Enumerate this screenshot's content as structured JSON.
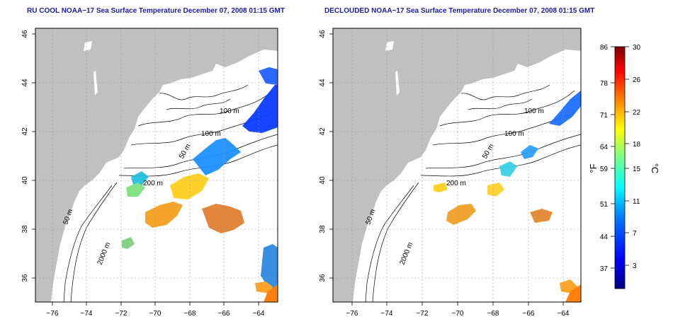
{
  "panels": [
    {
      "title": "RU COOL NOAA−17 Sea Surface Temperature December 07, 2008 01:15 GMT"
    },
    {
      "title": "DECLOUDED NOAA−17 Sea Surface Temperature December 07, 2008 01:15 GMT"
    }
  ],
  "axes": {
    "lon_ticks": [
      "−76",
      "−74",
      "−72",
      "−70",
      "−68",
      "−66",
      "−64"
    ],
    "lat_ticks": [
      "46",
      "44",
      "42",
      "40",
      "38",
      "36"
    ],
    "lon_range": [
      -77,
      -63
    ],
    "lat_range": [
      35,
      46
    ]
  },
  "contour_labels": {
    "left": [
      "100 m",
      "100 m",
      "50 m",
      "200 m",
      "50 m",
      "2000 m"
    ],
    "right": [
      "100 m",
      "100 m",
      "50 m",
      "200 m",
      "50 m",
      "2000 m"
    ]
  },
  "colorbar": {
    "f_label": "°F",
    "c_label": "°C",
    "f_ticks": [
      "86",
      "78",
      "71",
      "64",
      "59",
      "51",
      "44",
      "37"
    ],
    "c_ticks": [
      "30",
      "26",
      "22",
      "18",
      "15",
      "11",
      "7",
      "3"
    ],
    "range_c": [
      0,
      30
    ],
    "colormap": [
      "#00007f",
      "#0000ff",
      "#0080ff",
      "#00ffff",
      "#80ff80",
      "#ffff00",
      "#ff8000",
      "#ff0000",
      "#7f0000"
    ]
  },
  "colors": {
    "land": "#c0c0c0",
    "ocean": "#ffffff",
    "title": "#1a1aa8"
  }
}
